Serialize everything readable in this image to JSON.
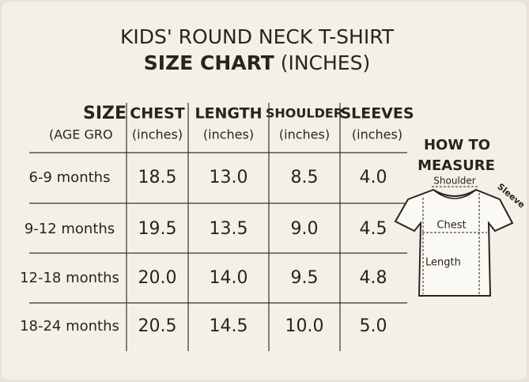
{
  "title": {
    "line1": "KIDS' ROUND NECK T-SHIRT",
    "line2_bold": "SIZE CHART",
    "line2_normal": "(INCHES)"
  },
  "table": {
    "headers": [
      {
        "name": "SIZE",
        "sub": "(AGE GRO"
      },
      {
        "name": "CHEST",
        "sub": "(inches)"
      },
      {
        "name": "LENGTH",
        "sub": "(inches)"
      },
      {
        "name": "SHOULDER",
        "sub": "(inches)"
      },
      {
        "name": "SLEEVES",
        "sub": "(inches)"
      }
    ],
    "rows": [
      [
        "6-9 months",
        "18.5",
        "13.0",
        "8.5",
        "4.0"
      ],
      [
        "9-12 months",
        "19.5",
        "13.5",
        "9.0",
        "4.5"
      ],
      [
        "12-18 months",
        "20.0",
        "14.0",
        "9.5",
        "4.8"
      ],
      [
        "18-24 months",
        "20.5",
        "14.5",
        "10.0",
        "5.0"
      ]
    ]
  },
  "diagram": {
    "title_line1": "HOW TO",
    "title_line2": "MEASURE",
    "shoulder": "Shoulder",
    "sleeve": "Sleeve",
    "chest": "Chest",
    "length": "Length"
  }
}
